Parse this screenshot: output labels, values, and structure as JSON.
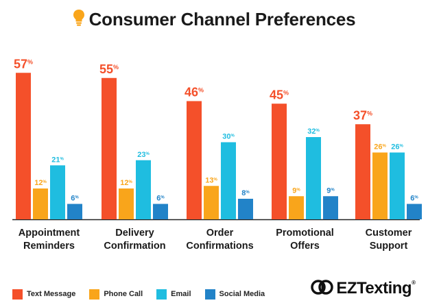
{
  "title": "Consumer Channel Preferences",
  "colors": {
    "text_message": "#f4502a",
    "phone_call": "#f9a51b",
    "email": "#1fbde0",
    "social_media": "#2283c8",
    "bulb": "#f9a51b"
  },
  "chart_data": {
    "type": "bar",
    "title": "Consumer Channel Preferences",
    "xlabel": "",
    "ylabel": "",
    "ylim": [
      0,
      57
    ],
    "grid": false,
    "legend_position": "bottom-left",
    "categories": [
      [
        "Appointment",
        "Reminders"
      ],
      [
        "Delivery",
        "Confirmation"
      ],
      [
        "Order",
        "Confirmations"
      ],
      [
        "Promotional",
        "Offers"
      ],
      [
        "Customer",
        "Support"
      ]
    ],
    "series": [
      {
        "name": "Text Message",
        "color": "#f4502a",
        "values": [
          57,
          55,
          46,
          45,
          37
        ],
        "labels": [
          "57%",
          "55%",
          "46%",
          "45%",
          "37%"
        ]
      },
      {
        "name": "Phone Call",
        "color": "#f9a51b",
        "values": [
          12,
          12,
          13,
          9,
          26
        ],
        "labels": [
          "12%",
          "12%",
          "13%",
          "9%",
          "26%"
        ]
      },
      {
        "name": "Email",
        "color": "#1fbde0",
        "values": [
          21,
          23,
          30,
          32,
          26
        ],
        "labels": [
          "21%",
          "23%",
          "30%",
          "32%",
          "26%"
        ]
      },
      {
        "name": "Social Media",
        "color": "#2283c8",
        "values": [
          6,
          6,
          8,
          9,
          6
        ],
        "labels": [
          "6%",
          "6%",
          "8%",
          "9%",
          "6%"
        ]
      }
    ]
  },
  "brand": {
    "name": "EZTexting",
    "reg": "®"
  }
}
